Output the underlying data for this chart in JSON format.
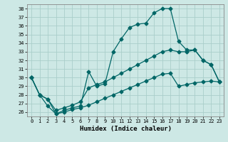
{
  "xlabel": "Humidex (Indice chaleur)",
  "xlim": [
    -0.5,
    23.5
  ],
  "ylim": [
    25.5,
    38.5
  ],
  "xticks": [
    0,
    1,
    2,
    3,
    4,
    5,
    6,
    7,
    8,
    9,
    10,
    11,
    12,
    13,
    14,
    15,
    16,
    17,
    18,
    19,
    20,
    21,
    22,
    23
  ],
  "yticks": [
    26,
    27,
    28,
    29,
    30,
    31,
    32,
    33,
    34,
    35,
    36,
    37,
    38
  ],
  "background_color": "#cde8e5",
  "grid_color": "#aaceca",
  "line_color": "#006666",
  "line1_x": [
    0,
    1,
    2,
    3,
    4,
    5,
    6,
    7,
    8,
    9,
    10,
    11,
    12,
    13,
    14,
    15,
    16,
    17,
    18,
    19,
    20,
    21,
    22,
    23
  ],
  "line1_y": [
    30.0,
    28.0,
    27.5,
    25.8,
    26.2,
    26.5,
    26.7,
    30.7,
    29.0,
    29.3,
    33.0,
    34.5,
    35.8,
    36.2,
    36.3,
    37.5,
    38.0,
    38.0,
    34.2,
    33.2,
    33.2,
    32.0,
    31.5,
    29.5
  ],
  "line2_x": [
    0,
    1,
    2,
    3,
    4,
    5,
    6,
    7,
    8,
    9,
    10,
    11,
    12,
    13,
    14,
    15,
    16,
    17,
    18,
    19,
    20,
    21,
    22,
    23
  ],
  "line2_y": [
    30.0,
    28.0,
    27.5,
    26.2,
    26.5,
    26.8,
    27.2,
    28.8,
    29.2,
    29.5,
    30.0,
    30.5,
    31.0,
    31.5,
    32.0,
    32.5,
    33.0,
    33.2,
    33.0,
    33.0,
    33.2,
    32.0,
    31.5,
    29.5
  ],
  "line3_x": [
    0,
    1,
    2,
    3,
    4,
    5,
    6,
    7,
    8,
    9,
    10,
    11,
    12,
    13,
    14,
    15,
    16,
    17,
    18,
    19,
    20,
    21,
    22,
    23
  ],
  "line3_y": [
    30.0,
    28.0,
    26.7,
    25.8,
    26.0,
    26.3,
    26.5,
    26.8,
    27.2,
    27.6,
    28.0,
    28.4,
    28.8,
    29.2,
    29.6,
    30.0,
    30.4,
    30.5,
    29.0,
    29.2,
    29.4,
    29.5,
    29.6,
    29.5
  ]
}
